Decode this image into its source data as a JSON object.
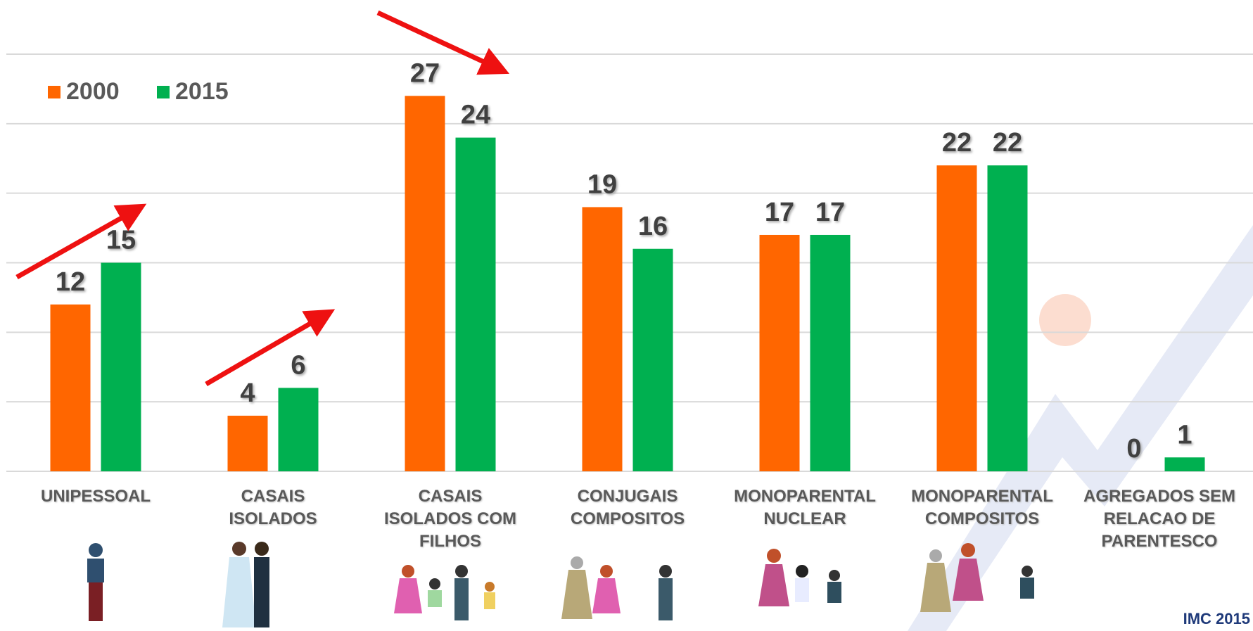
{
  "chart_data": {
    "type": "bar",
    "categories": [
      "UNIPESSOAL",
      "CASAIS\nISOLADOS",
      "CASAIS\nISOLADOS COM\nFILHOS",
      "CONJUGAIS\nCOMPOSITOS",
      "MONOPARENTAL\nNUCLEAR",
      "MONOPARENTAL\nCOMPOSITOS",
      "AGREGADOS SEM\nRELACAO DE\nPARENTESCO"
    ],
    "series": [
      {
        "name": "2000",
        "color": "#ff6600",
        "values": [
          12,
          4,
          27,
          19,
          17,
          22,
          0
        ]
      },
      {
        "name": "2015",
        "color": "#00b050",
        "values": [
          15,
          6,
          24,
          16,
          17,
          22,
          1
        ]
      }
    ],
    "ylim": [
      0,
      30
    ],
    "yticks": [
      0,
      5,
      10,
      15,
      20,
      25,
      30
    ],
    "grid": true,
    "legend": "top-left",
    "source": "IMC 2015"
  }
}
